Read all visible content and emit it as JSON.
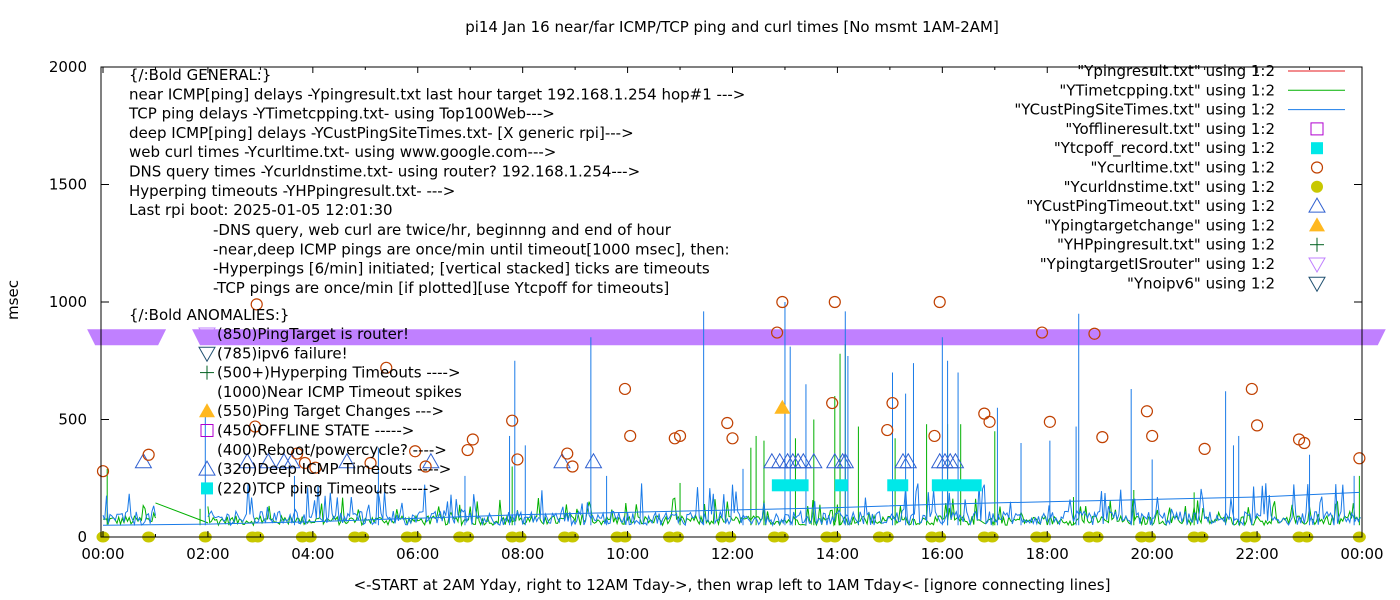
{
  "chart_data": {
    "type": "line",
    "title": "pi14 Jan 16  near/far ICMP/TCP ping and curl times [No msmt 1AM-2AM]",
    "xlabel": "<-START at 2AM Yday, right to 12AM Tday->, then wrap left to 1AM Tday<- [ignore connecting lines]",
    "ylabel": "msec",
    "xlim_hours": [
      0,
      24
    ],
    "ylim": [
      0,
      2000
    ],
    "grid": false,
    "legend_position": "top-right",
    "x_tick_labels": [
      "00:00",
      "02:00",
      "04:00",
      "06:00",
      "08:00",
      "10:00",
      "12:00",
      "14:00",
      "16:00",
      "18:00",
      "20:00",
      "22:00",
      "00:00"
    ],
    "x_tick_hours": [
      0,
      2,
      4,
      6,
      8,
      10,
      12,
      14,
      16,
      18,
      20,
      22,
      24
    ],
    "y_tick_labels": [
      "0",
      "500",
      "1000",
      "1500",
      "2000"
    ],
    "y_ticks": [
      0,
      500,
      1000,
      1500,
      2000
    ],
    "colors": {
      "ping": "#e41a1c",
      "tcp": "#00b000",
      "cust": "#1a7be8",
      "offline": "#b000d0",
      "tcpoff": "#00e8e8",
      "curl": "#c04000",
      "dns": "#c8c800",
      "custtimeout": "#3060d0",
      "targetchange": "#ffb820",
      "hp": "#006020",
      "isrouter": "#c080ff",
      "noipv6": "#205070"
    },
    "legend": [
      {
        "label": "\"Ypingresult.txt\" using 1:2",
        "style": "line",
        "color_key": "ping"
      },
      {
        "label": "\"YTimetcpping.txt\" using 1:2",
        "style": "line",
        "color_key": "tcp"
      },
      {
        "label": "\"YCustPingSiteTimes.txt\" using 1:2",
        "style": "line",
        "color_key": "cust"
      },
      {
        "label": "\"Yofflineresult.txt\" using 1:2",
        "style": "open-square",
        "color_key": "offline"
      },
      {
        "label": "\"Ytcpoff_record.txt\" using 1:2",
        "style": "filled-square",
        "color_key": "tcpoff"
      },
      {
        "label": "\"Ycurltime.txt\" using 1:2",
        "style": "open-circle",
        "color_key": "curl"
      },
      {
        "label": "\"Ycurldnstime.txt\" using 1:2",
        "style": "filled-circle",
        "color_key": "dns"
      },
      {
        "label": "\"YCustPingTimeout.txt\" using 1:2",
        "style": "open-triangle-up",
        "color_key": "custtimeout"
      },
      {
        "label": "\"Ypingtargetchange\" using 1:2",
        "style": "filled-triangle-up",
        "color_key": "targetchange"
      },
      {
        "label": "\"YHPpingresult.txt\" using 1:2",
        "style": "plus",
        "color_key": "hp"
      },
      {
        "label": "\"YpingtargetISrouter\" using 1:2",
        "style": "open-triangle-down",
        "color_key": "isrouter"
      },
      {
        "label": "\"Ynoipv6\" using 1:2",
        "style": "open-triangle-down",
        "color_key": "noipv6"
      }
    ],
    "annotations_general": [
      "{/:Bold GENERAL:}",
      "near ICMP[ping] delays -Ypingresult.txt last hour target 192.168.1.254 hop#1 --->",
      "TCP ping delays -YTimetcpping.txt- using Top100Web--->",
      "deep ICMP[ping] delays -YCustPingSiteTimes.txt- [X generic rpi]--->",
      "web curl times -Ycurltime.txt- using www.google.com--->",
      "DNS query times -Ycurldnstime.txt- using router? 192.168.1.254--->",
      "Hyperping timeouts -YHPpingresult.txt- --->",
      "Last rpi boot: 2025-01-05 12:01:30"
    ],
    "annotations_notes": [
      "-DNS query, web curl are twice/hr, beginnng and end of hour",
      "-near,deep ICMP pings are once/min until timeout[1000 msec], then:",
      "  -Hyperpings [6/min] initiated; [vertical stacked] ticks are timeouts",
      "-TCP pings are once/min [if plotted][use Ytcpoff for timeouts]"
    ],
    "annotations_anomalies_title": "{/:Bold ANOMALIES:}",
    "annotations_anomalies": [
      {
        "text": "(850)PingTarget is router!",
        "marker": "open-triangle-down",
        "color_key": "isrouter"
      },
      {
        "text": "(785)ipv6 failure!",
        "marker": "open-triangle-down",
        "color_key": "noipv6"
      },
      {
        "text": "(500+)Hyperping Timeouts ---->",
        "marker": "plus",
        "color_key": "hp"
      },
      {
        "text": "(1000)Near ICMP Timeout spikes",
        "marker": "none",
        "color_key": "ping"
      },
      {
        "text": "(550)Ping Target Changes --->",
        "marker": "filled-triangle-up",
        "color_key": "targetchange"
      },
      {
        "text": "(450)OFFLINE STATE ----->",
        "marker": "open-square",
        "color_key": "offline"
      },
      {
        "text": "(400)Reboot/powercycle? ---->",
        "marker": "none",
        "color_key": "offline"
      },
      {
        "text": "(320)Deep ICMP Timeouts ---->",
        "marker": "open-triangle-up",
        "color_key": "custtimeout"
      },
      {
        "text": "(220)TCP ping Timeouts ----->",
        "marker": "filled-square",
        "color_key": "tcpoff"
      }
    ],
    "series": {
      "isrouter_band": {
        "y": 850,
        "x_ranges_hours": [
          [
            -0.15,
            1.05
          ],
          [
            1.85,
            24.3
          ]
        ]
      },
      "curl_points": [
        [
          0.0,
          280
        ],
        [
          0.87,
          350
        ],
        [
          2.93,
          990
        ],
        [
          2.9,
          470
        ],
        [
          3.7,
          355
        ],
        [
          3.85,
          315
        ],
        [
          4.05,
          295
        ],
        [
          5.1,
          315
        ],
        [
          5.4,
          720
        ],
        [
          5.95,
          365
        ],
        [
          6.15,
          300
        ],
        [
          6.95,
          370
        ],
        [
          7.05,
          415
        ],
        [
          7.8,
          495
        ],
        [
          7.9,
          330
        ],
        [
          8.85,
          355
        ],
        [
          8.95,
          300
        ],
        [
          9.95,
          630
        ],
        [
          10.05,
          430
        ],
        [
          10.9,
          420
        ],
        [
          11.0,
          430
        ],
        [
          11.9,
          485
        ],
        [
          12.0,
          420
        ],
        [
          12.85,
          870
        ],
        [
          12.95,
          1000
        ],
        [
          13.95,
          1000
        ],
        [
          13.9,
          570
        ],
        [
          14.95,
          455
        ],
        [
          15.05,
          570
        ],
        [
          15.85,
          430
        ],
        [
          15.95,
          1000
        ],
        [
          16.8,
          525
        ],
        [
          16.9,
          490
        ],
        [
          17.9,
          870
        ],
        [
          18.05,
          490
        ],
        [
          18.9,
          865
        ],
        [
          19.05,
          425
        ],
        [
          19.9,
          535
        ],
        [
          20.0,
          430
        ],
        [
          21.0,
          375
        ],
        [
          21.9,
          630
        ],
        [
          22.0,
          475
        ],
        [
          22.8,
          415
        ],
        [
          22.9,
          400
        ],
        [
          23.95,
          335
        ]
      ],
      "dns_hours": [
        0.0,
        0.87,
        1.95,
        2.85,
        2.95,
        3.8,
        3.95,
        4.8,
        4.95,
        5.8,
        5.95,
        6.8,
        6.95,
        7.8,
        7.95,
        8.8,
        8.95,
        9.8,
        9.95,
        10.8,
        10.95,
        11.8,
        11.95,
        12.8,
        12.95,
        13.8,
        13.95,
        14.8,
        14.95,
        15.8,
        15.95,
        16.8,
        16.95,
        17.8,
        17.95,
        18.8,
        18.95,
        19.8,
        19.95,
        20.8,
        20.95,
        21.8,
        21.95,
        22.8,
        22.95,
        23.95
      ],
      "cust_timeouts": [
        [
          0.77,
          320
        ],
        [
          2.75,
          320
        ],
        [
          3.15,
          320
        ],
        [
          3.45,
          320
        ],
        [
          3.6,
          320
        ],
        [
          4.65,
          320
        ],
        [
          6.25,
          320
        ],
        [
          8.75,
          320
        ],
        [
          9.35,
          320
        ],
        [
          12.75,
          320
        ],
        [
          12.9,
          320
        ],
        [
          13.05,
          320
        ],
        [
          13.15,
          320
        ],
        [
          13.25,
          320
        ],
        [
          13.35,
          320
        ],
        [
          13.55,
          320
        ],
        [
          13.95,
          320
        ],
        [
          14.1,
          320
        ],
        [
          14.15,
          320
        ],
        [
          15.25,
          320
        ],
        [
          15.35,
          320
        ],
        [
          15.95,
          320
        ],
        [
          16.05,
          320
        ],
        [
          16.15,
          320
        ],
        [
          16.25,
          320
        ]
      ],
      "target_changes": [
        [
          12.95,
          550
        ]
      ],
      "tcpoff_ranges_hours": [
        [
          12.75,
          13.45
        ],
        [
          13.95,
          14.2
        ],
        [
          14.95,
          15.35
        ],
        [
          15.8,
          16.75
        ]
      ],
      "tcpoff_y": 220,
      "cust_spikes": [
        [
          1.95,
          540
        ],
        [
          3.65,
          260
        ],
        [
          5.25,
          380
        ],
        [
          6.9,
          260
        ],
        [
          7.75,
          430
        ],
        [
          7.85,
          750
        ],
        [
          8.05,
          390
        ],
        [
          9.3,
          850
        ],
        [
          9.6,
          260
        ],
        [
          11.45,
          960
        ],
        [
          12.2,
          290
        ],
        [
          13.0,
          1000
        ],
        [
          13.1,
          810
        ],
        [
          13.4,
          650
        ],
        [
          14.15,
          960
        ],
        [
          14.2,
          770
        ],
        [
          15.05,
          700
        ],
        [
          15.3,
          610
        ],
        [
          15.45,
          740
        ],
        [
          16.0,
          850
        ],
        [
          16.1,
          750
        ],
        [
          16.3,
          700
        ],
        [
          17.05,
          550
        ],
        [
          17.5,
          400
        ],
        [
          18.05,
          410
        ],
        [
          18.55,
          470
        ],
        [
          18.6,
          950
        ],
        [
          19.6,
          630
        ],
        [
          20.0,
          330
        ],
        [
          21.4,
          620
        ],
        [
          21.55,
          390
        ],
        [
          21.65,
          430
        ],
        [
          23.0,
          350
        ],
        [
          23.85,
          260
        ]
      ],
      "tcp_spikes": [
        [
          0.08,
          290
        ],
        [
          1.85,
          120
        ],
        [
          7.8,
          300
        ],
        [
          11.0,
          230
        ],
        [
          12.35,
          380
        ],
        [
          12.45,
          430
        ],
        [
          12.6,
          410
        ],
        [
          13.2,
          420
        ],
        [
          13.55,
          500
        ],
        [
          13.95,
          600
        ],
        [
          14.05,
          780
        ],
        [
          14.15,
          820
        ],
        [
          14.4,
          470
        ],
        [
          15.1,
          420
        ],
        [
          15.7,
          480
        ],
        [
          16.1,
          480
        ],
        [
          16.35,
          480
        ],
        [
          17.0,
          450
        ],
        [
          18.5,
          170
        ],
        [
          19.65,
          200
        ],
        [
          20.8,
          190
        ],
        [
          23.95,
          260
        ]
      ],
      "cust_baseline_steps": [
        [
          0,
          50
        ],
        [
          2,
          55
        ],
        [
          4,
          65
        ],
        [
          6,
          80
        ],
        [
          8,
          95
        ],
        [
          10,
          105
        ],
        [
          12,
          115
        ],
        [
          14,
          125
        ],
        [
          16,
          140
        ],
        [
          18,
          150
        ],
        [
          20,
          160
        ],
        [
          22,
          170
        ],
        [
          23.95,
          190
        ]
      ],
      "tcp_baseline": 50,
      "tcp_gap_line": [
        [
          1.0,
          145
        ],
        [
          2.0,
          60
        ]
      ]
    }
  }
}
